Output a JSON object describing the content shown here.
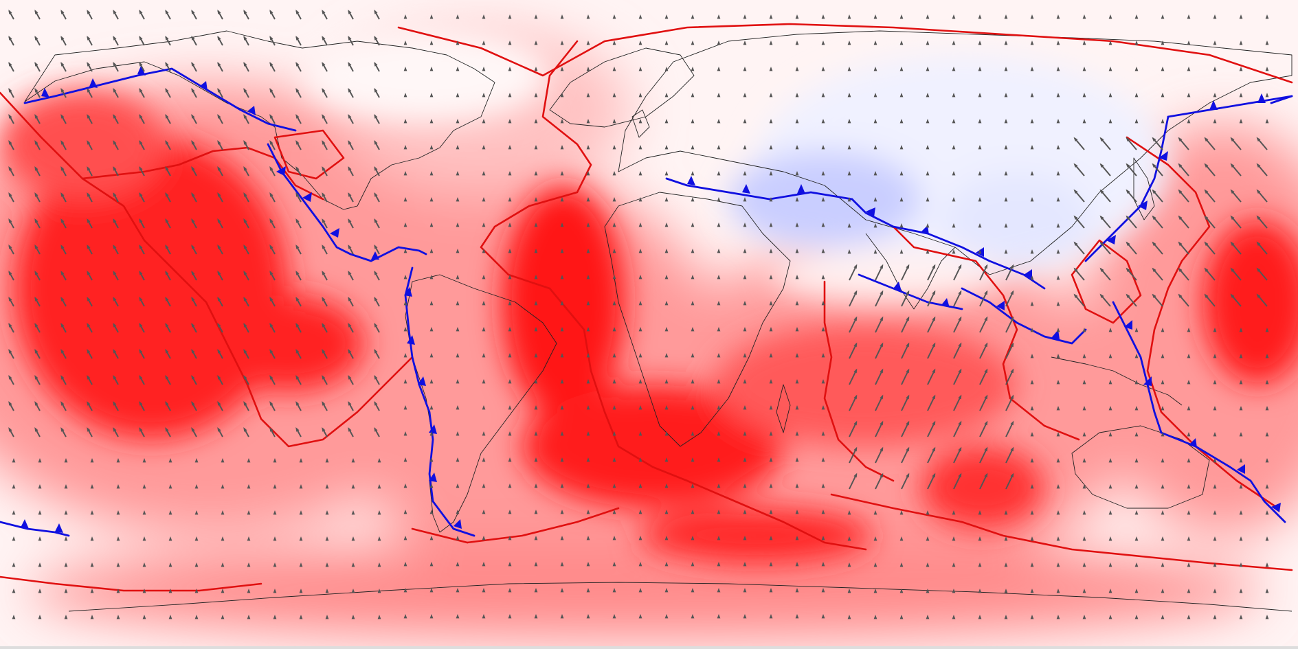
{
  "map": {
    "type": "plate-velocity-map",
    "projection": "equirectangular",
    "colors": {
      "background": "#fff4f4",
      "convergent_high": "#ff1a1a",
      "convergent_mid": "#ff6a6a",
      "convergent_low": "#ffb6b6",
      "divergent": "#d8dcff",
      "divergent_strong": "#aeb6f6",
      "ridge": "#e01010",
      "trench": "#1010e0",
      "vector": "#555555",
      "coastline": "#222222"
    },
    "layers": [
      "color-field",
      "coastlines",
      "ridges",
      "subduction-zones",
      "velocity-vectors"
    ],
    "icons": {
      "subduction_tooth": "blue-triangle-icon",
      "velocity": "arrow-icon"
    }
  }
}
